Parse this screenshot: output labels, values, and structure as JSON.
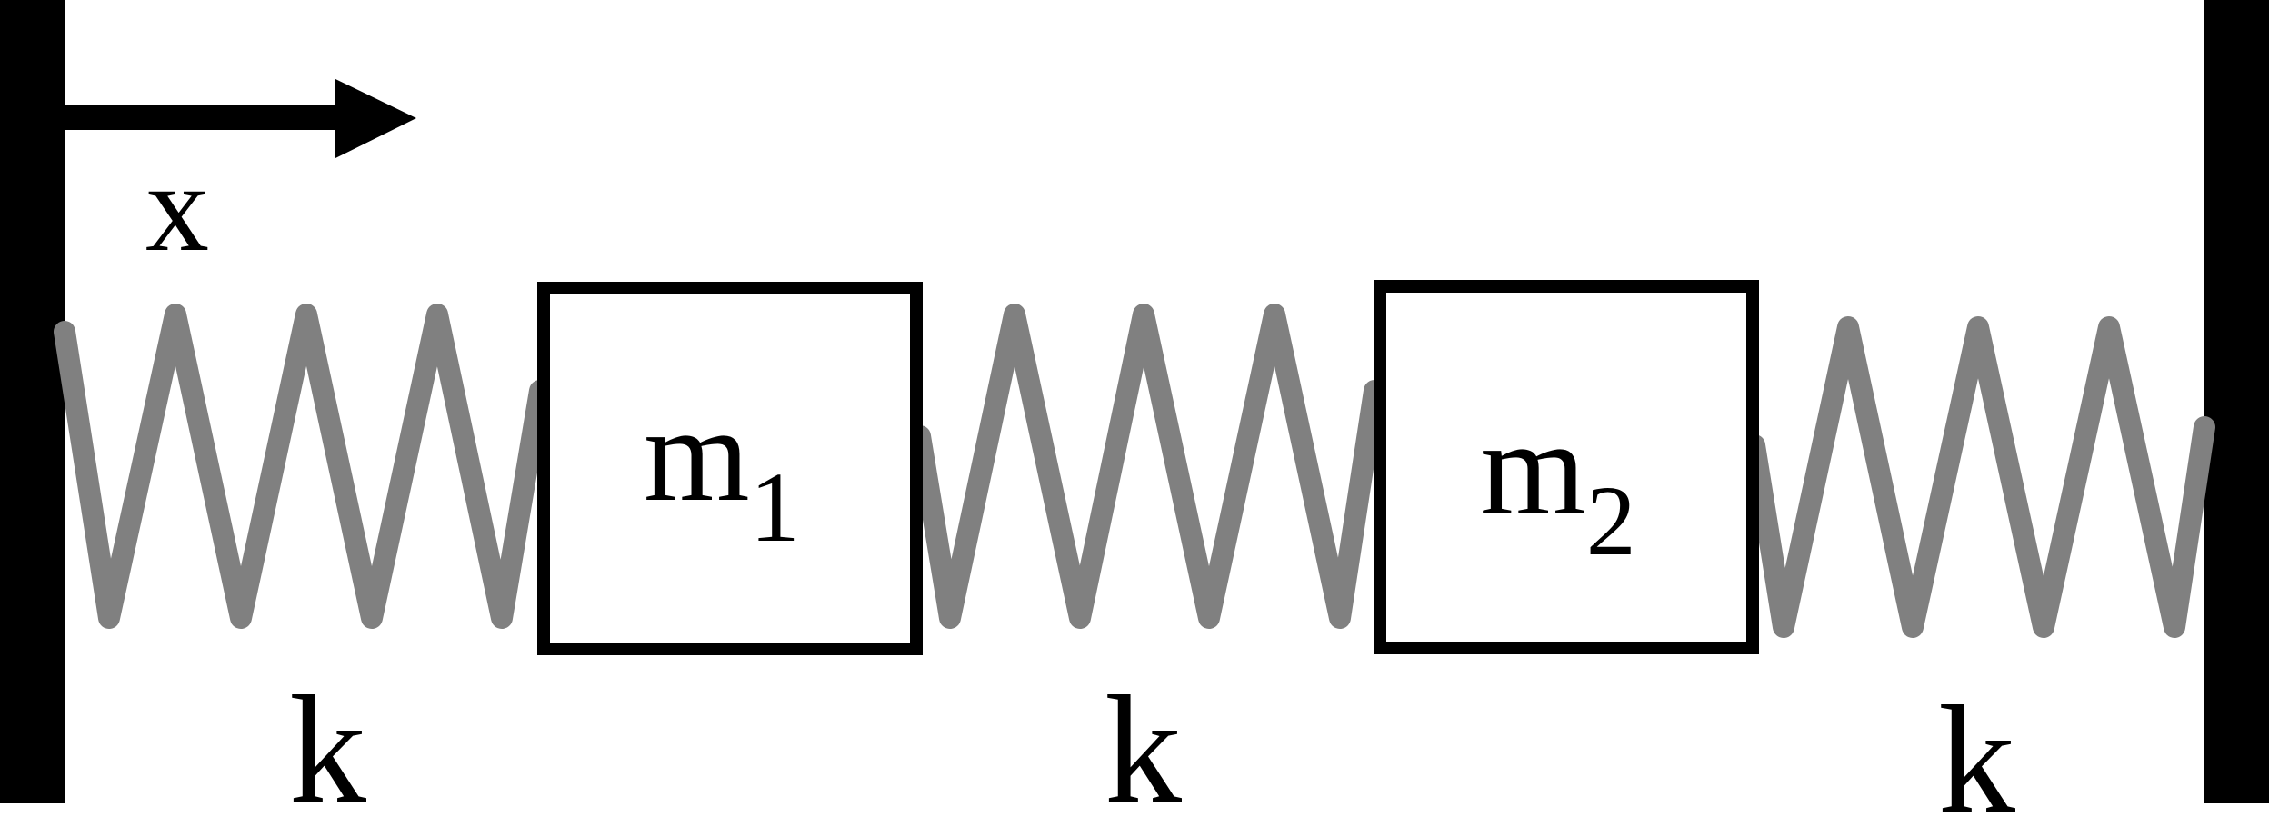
{
  "colors": {
    "wall": "#000000",
    "spring": "#808080",
    "mass_border": "#000000",
    "text": "#000000",
    "background": "#ffffff"
  },
  "axis": {
    "label": "x"
  },
  "masses": [
    {
      "symbol": "m",
      "subscript": "1"
    },
    {
      "symbol": "m",
      "subscript": "2"
    }
  ],
  "springs": [
    {
      "label": "k"
    },
    {
      "label": "k"
    },
    {
      "label": "k"
    }
  ]
}
